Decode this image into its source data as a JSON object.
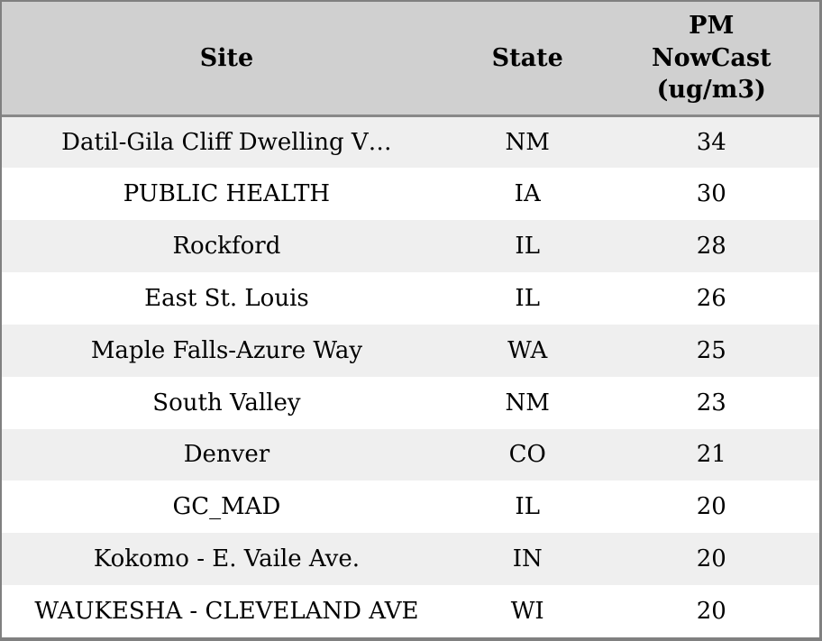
{
  "chart_data": {
    "type": "table",
    "columns": [
      "Site",
      "State",
      "PM NowCast (ug/m3)"
    ],
    "pm_header_lines": [
      "PM",
      "NowCast",
      "(ug/m3)"
    ],
    "rows": [
      [
        "Datil-Gila Cliff Dwelling V…",
        "NM",
        34
      ],
      [
        "PUBLIC HEALTH",
        "IA",
        30
      ],
      [
        "Rockford",
        "IL",
        28
      ],
      [
        "East St. Louis",
        "IL",
        26
      ],
      [
        "Maple Falls-Azure Way",
        "WA",
        25
      ],
      [
        "South Valley",
        "NM",
        23
      ],
      [
        "Denver",
        "CO",
        21
      ],
      [
        "GC_MAD",
        "IL",
        20
      ],
      [
        "Kokomo - E. Vaile Ave.",
        "IN",
        20
      ],
      [
        "WAUKESHA - CLEVELAND AVE",
        "WI",
        20
      ]
    ],
    "layout": {
      "row_striping": "odd rows light gray, even rows white",
      "text_alignment": "center"
    }
  },
  "colors": {
    "header_bg": "#d0d0d0",
    "row_alt_bg": "#efefef",
    "row_bg": "#ffffff",
    "outer_border": "#808080",
    "header_separator": "#888888",
    "text": "#000000"
  }
}
